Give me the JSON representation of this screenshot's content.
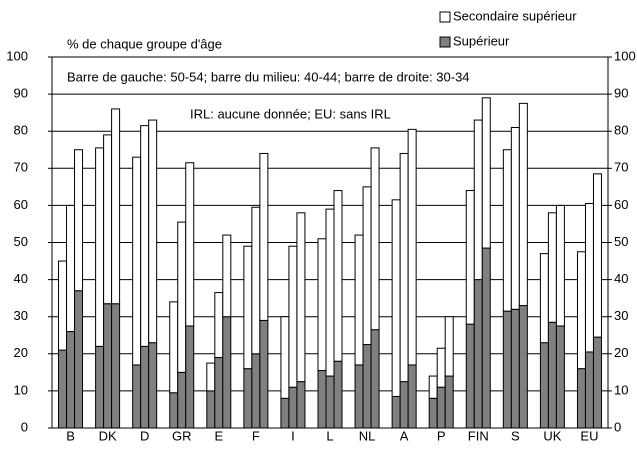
{
  "chart_data": {
    "type": "stacked-bar",
    "annotations": [
      "% de chaque groupe d'âge",
      "Barre de gauche: 50-54; barre du milieu: 40-44; barre de droite: 30-34",
      "IRL: aucune donnée; EU: sans IRL"
    ],
    "categories": [
      null,
      "B",
      null,
      null,
      "DK",
      null,
      null,
      "D",
      null,
      null,
      "GR",
      null,
      null,
      "E",
      null,
      null,
      "F",
      null,
      null,
      "I",
      null,
      null,
      "L",
      null,
      null,
      "NL",
      null,
      null,
      "A",
      null,
      null,
      "P",
      null,
      null,
      "FIN",
      null,
      null,
      "S",
      null,
      null,
      "UK",
      null,
      null,
      "EU",
      null
    ],
    "series": [
      {
        "name": "Supérieur",
        "color": "#808080",
        "values": [
          21,
          26,
          37,
          22,
          33.5,
          33.5,
          17,
          22,
          23,
          9.5,
          15,
          27.5,
          10,
          19,
          30,
          16,
          20,
          29,
          8,
          11,
          12.5,
          15.5,
          14,
          18,
          17,
          22.5,
          26.5,
          8.5,
          12.5,
          17,
          8,
          11,
          14,
          28,
          40,
          48.5,
          31.5,
          32,
          33,
          23,
          28.5,
          27.5,
          16,
          20.5,
          24.5
        ]
      },
      {
        "name": "Secondaire supérieur",
        "color": "#ffffff",
        "values": [
          24,
          34,
          38,
          53.5,
          45.5,
          52.5,
          56,
          59.5,
          60,
          24.5,
          40.5,
          44,
          7.5,
          17.5,
          22,
          33,
          39.5,
          45,
          22,
          38,
          45.5,
          35.5,
          45,
          46,
          35,
          42.5,
          49,
          53,
          61.5,
          63.5,
          6,
          10.5,
          16,
          36,
          43,
          40.5,
          43.5,
          49,
          54.5,
          24,
          29.5,
          32.5,
          31.5,
          40,
          44
        ]
      }
    ],
    "ylim": [
      0,
      100
    ],
    "yticks": [
      0,
      10,
      20,
      30,
      40,
      50,
      60,
      70,
      80,
      90,
      100
    ],
    "y2lim": [
      0,
      100
    ],
    "y2ticks": [
      0,
      10,
      20,
      30,
      40,
      50,
      60,
      70,
      80,
      90,
      100
    ],
    "grid": true
  }
}
